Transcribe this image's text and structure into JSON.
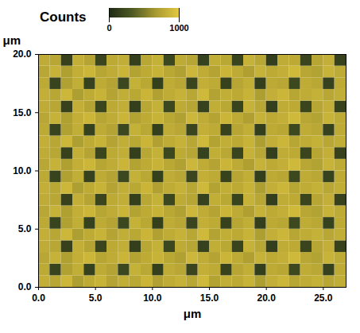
{
  "chart_data": {
    "type": "heatmap",
    "title": "Counts",
    "x_label": "μm",
    "y_label": "μm",
    "xlim": [
      0,
      27
    ],
    "ylim": [
      0,
      20
    ],
    "xticks": [
      {
        "value": 0,
        "label": "0.0"
      },
      {
        "value": 5,
        "label": "5.0"
      },
      {
        "value": 10,
        "label": "10.0"
      },
      {
        "value": 15,
        "label": "15.0"
      },
      {
        "value": 20,
        "label": "20.0"
      },
      {
        "value": 25,
        "label": "25.0"
      }
    ],
    "yticks": [
      {
        "value": 0,
        "label": "0.0"
      },
      {
        "value": 5,
        "label": "5.0"
      },
      {
        "value": 10,
        "label": "10.0"
      },
      {
        "value": 15,
        "label": "15.0"
      },
      {
        "value": 20,
        "label": "20.0"
      }
    ],
    "color_range": [
      0,
      1000
    ],
    "color_ticks": [
      0,
      1000
    ],
    "x": [
      0.5,
      1.5,
      2.5,
      3.5,
      4.5,
      5.5,
      6.5,
      7.5,
      8.5,
      9.5,
      10.5,
      11.5,
      12.5,
      13.5,
      14.5,
      15.5,
      16.5,
      17.5,
      18.5,
      19.5,
      20.5,
      21.5,
      22.5,
      23.5,
      24.5,
      25.5,
      26.5
    ],
    "y": [
      0.5,
      1.5,
      2.5,
      3.5,
      4.5,
      5.5,
      6.5,
      7.5,
      8.5,
      9.5,
      10.5,
      11.5,
      12.5,
      13.5,
      14.5,
      15.5,
      16.5,
      17.5,
      18.5,
      19.5
    ],
    "cells": [
      [
        820,
        760,
        880,
        700,
        790,
        850,
        740,
        810,
        770,
        860,
        720,
        800,
        840,
        760,
        890,
        730,
        810,
        780,
        850,
        700,
        820,
        870,
        750,
        800,
        830,
        760,
        810
      ],
      [
        780,
        180,
        720,
        810,
        160,
        790,
        740,
        200,
        830,
        770,
        150,
        800,
        760,
        190,
        820,
        790,
        170,
        750,
        810,
        140,
        780,
        760,
        210,
        800,
        770,
        160,
        790
      ],
      [
        760,
        840,
        710,
        820,
        870,
        750,
        800,
        860,
        730,
        790,
        850,
        770,
        720,
        880,
        800,
        740,
        860,
        790,
        710,
        840,
        780,
        820,
        890,
        760,
        730,
        850,
        790
      ],
      [
        800,
        760,
        170,
        820,
        740,
        190,
        780,
        810,
        150,
        760,
        830,
        200,
        790,
        750,
        160,
        810,
        770,
        180,
        840,
        760,
        140,
        800,
        780,
        190,
        750,
        820,
        170
      ],
      [
        820,
        760,
        880,
        700,
        790,
        850,
        740,
        810,
        770,
        860,
        720,
        800,
        840,
        760,
        890,
        730,
        810,
        780,
        850,
        700,
        820,
        870,
        750,
        800,
        830,
        760,
        810
      ],
      [
        780,
        180,
        720,
        810,
        160,
        790,
        740,
        200,
        830,
        770,
        150,
        800,
        760,
        190,
        820,
        790,
        170,
        750,
        810,
        140,
        780,
        760,
        210,
        800,
        770,
        160,
        790
      ],
      [
        760,
        840,
        710,
        820,
        870,
        750,
        800,
        860,
        730,
        790,
        850,
        770,
        720,
        880,
        800,
        740,
        860,
        790,
        710,
        840,
        780,
        820,
        890,
        760,
        730,
        850,
        790
      ],
      [
        800,
        760,
        170,
        820,
        740,
        190,
        780,
        810,
        150,
        760,
        830,
        200,
        790,
        750,
        160,
        810,
        770,
        180,
        840,
        760,
        140,
        800,
        780,
        190,
        750,
        820,
        170
      ],
      [
        820,
        760,
        880,
        700,
        790,
        850,
        740,
        810,
        770,
        860,
        720,
        800,
        840,
        760,
        890,
        730,
        810,
        780,
        850,
        700,
        820,
        870,
        750,
        800,
        830,
        760,
        810
      ],
      [
        780,
        180,
        720,
        810,
        160,
        790,
        740,
        200,
        830,
        770,
        150,
        800,
        760,
        190,
        820,
        790,
        170,
        750,
        810,
        140,
        780,
        760,
        210,
        800,
        770,
        160,
        790
      ],
      [
        760,
        840,
        710,
        820,
        870,
        750,
        800,
        860,
        730,
        790,
        850,
        770,
        720,
        880,
        800,
        740,
        860,
        790,
        710,
        840,
        780,
        820,
        890,
        760,
        730,
        850,
        790
      ],
      [
        800,
        760,
        170,
        820,
        740,
        190,
        780,
        810,
        150,
        760,
        830,
        200,
        790,
        750,
        160,
        810,
        770,
        180,
        840,
        760,
        140,
        800,
        780,
        190,
        750,
        820,
        170
      ],
      [
        820,
        760,
        880,
        700,
        790,
        850,
        740,
        810,
        770,
        860,
        720,
        800,
        840,
        760,
        890,
        730,
        810,
        780,
        850,
        700,
        820,
        870,
        750,
        800,
        830,
        760,
        810
      ],
      [
        780,
        180,
        720,
        810,
        160,
        790,
        740,
        200,
        830,
        770,
        150,
        800,
        760,
        190,
        820,
        790,
        170,
        750,
        810,
        140,
        780,
        760,
        210,
        800,
        770,
        160,
        790
      ],
      [
        760,
        840,
        710,
        820,
        870,
        750,
        800,
        860,
        730,
        790,
        850,
        770,
        720,
        880,
        800,
        740,
        860,
        790,
        710,
        840,
        780,
        820,
        890,
        760,
        730,
        850,
        790
      ],
      [
        800,
        760,
        170,
        820,
        740,
        190,
        780,
        810,
        150,
        760,
        830,
        200,
        790,
        750,
        160,
        810,
        770,
        180,
        840,
        760,
        140,
        800,
        780,
        190,
        750,
        820,
        170
      ],
      [
        820,
        760,
        880,
        700,
        790,
        850,
        740,
        810,
        770,
        860,
        720,
        800,
        840,
        760,
        890,
        730,
        810,
        780,
        850,
        700,
        820,
        870,
        750,
        800,
        830,
        760,
        810
      ],
      [
        780,
        180,
        720,
        810,
        160,
        790,
        740,
        200,
        830,
        770,
        150,
        800,
        760,
        190,
        820,
        790,
        170,
        750,
        810,
        140,
        780,
        760,
        210,
        800,
        770,
        160,
        790
      ],
      [
        760,
        840,
        710,
        820,
        870,
        750,
        800,
        860,
        730,
        790,
        850,
        770,
        720,
        880,
        800,
        740,
        860,
        790,
        710,
        840,
        780,
        820,
        890,
        760,
        730,
        850,
        790
      ],
      [
        800,
        760,
        170,
        820,
        740,
        190,
        780,
        810,
        150,
        760,
        830,
        200,
        790,
        750,
        160,
        810,
        770,
        180,
        840,
        760,
        140,
        800,
        780,
        190,
        750,
        820,
        170
      ]
    ]
  }
}
